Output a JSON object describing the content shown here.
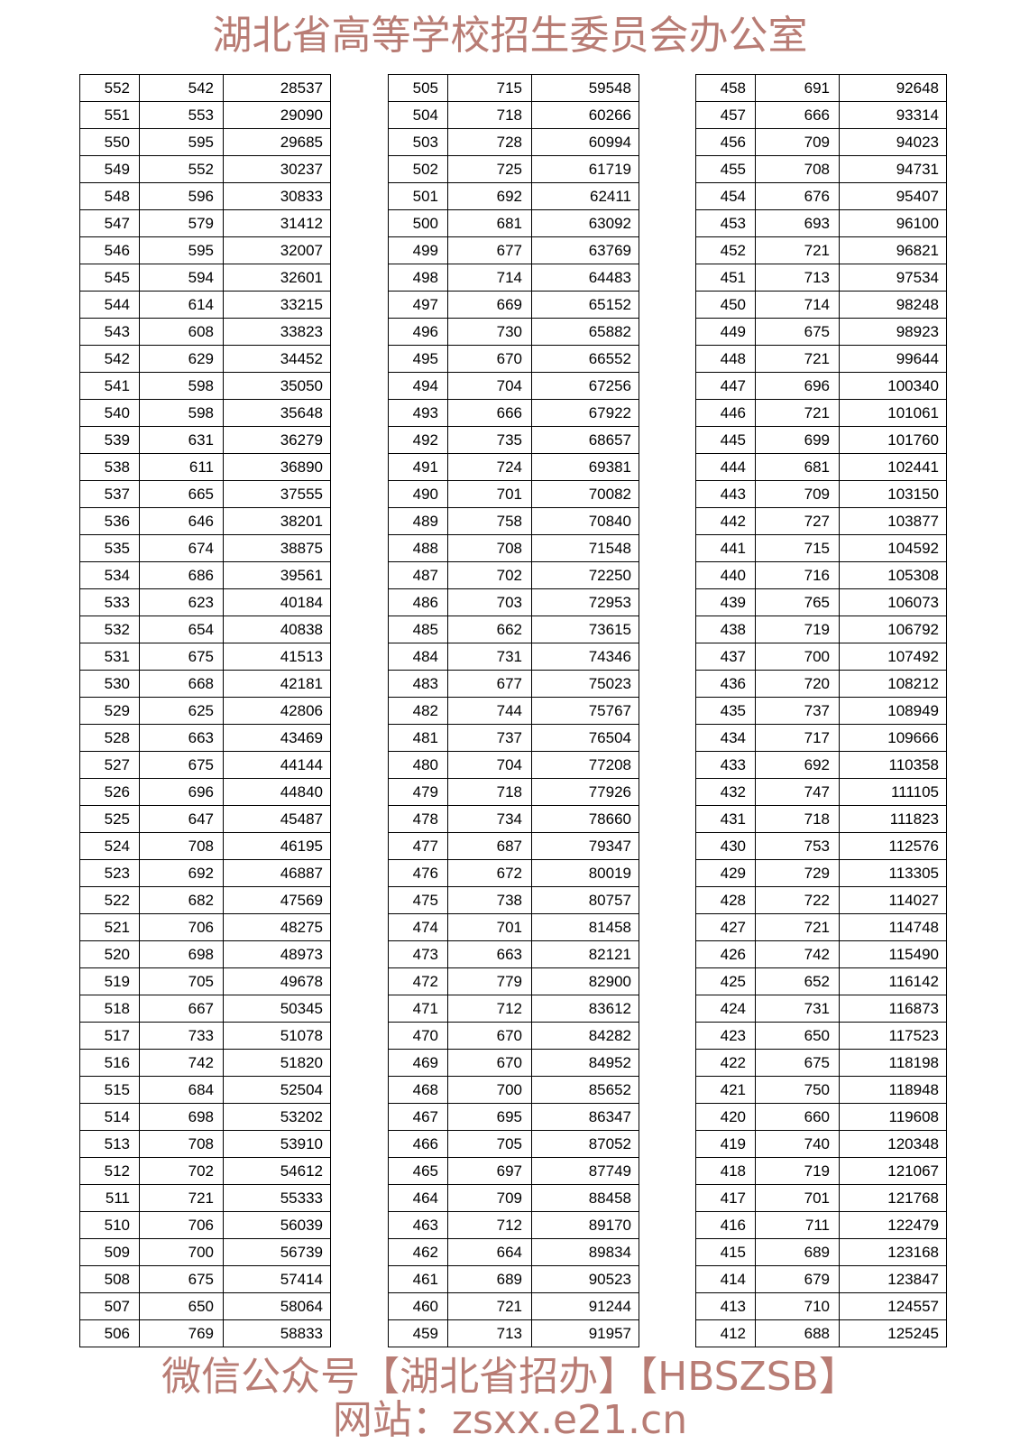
{
  "watermark": {
    "line1": "湖北省高等学校招生委员会办公室",
    "line2": "微信公众号【湖北省招办】【HBSZSB】",
    "line3": "网站：zsxx.e21.cn",
    "color": "#b87c74"
  },
  "tables": [
    {
      "rows": [
        [
          "552",
          "542",
          "28537"
        ],
        [
          "551",
          "553",
          "29090"
        ],
        [
          "550",
          "595",
          "29685"
        ],
        [
          "549",
          "552",
          "30237"
        ],
        [
          "548",
          "596",
          "30833"
        ],
        [
          "547",
          "579",
          "31412"
        ],
        [
          "546",
          "595",
          "32007"
        ],
        [
          "545",
          "594",
          "32601"
        ],
        [
          "544",
          "614",
          "33215"
        ],
        [
          "543",
          "608",
          "33823"
        ],
        [
          "542",
          "629",
          "34452"
        ],
        [
          "541",
          "598",
          "35050"
        ],
        [
          "540",
          "598",
          "35648"
        ],
        [
          "539",
          "631",
          "36279"
        ],
        [
          "538",
          "611",
          "36890"
        ],
        [
          "537",
          "665",
          "37555"
        ],
        [
          "536",
          "646",
          "38201"
        ],
        [
          "535",
          "674",
          "38875"
        ],
        [
          "534",
          "686",
          "39561"
        ],
        [
          "533",
          "623",
          "40184"
        ],
        [
          "532",
          "654",
          "40838"
        ],
        [
          "531",
          "675",
          "41513"
        ],
        [
          "530",
          "668",
          "42181"
        ],
        [
          "529",
          "625",
          "42806"
        ],
        [
          "528",
          "663",
          "43469"
        ],
        [
          "527",
          "675",
          "44144"
        ],
        [
          "526",
          "696",
          "44840"
        ],
        [
          "525",
          "647",
          "45487"
        ],
        [
          "524",
          "708",
          "46195"
        ],
        [
          "523",
          "692",
          "46887"
        ],
        [
          "522",
          "682",
          "47569"
        ],
        [
          "521",
          "706",
          "48275"
        ],
        [
          "520",
          "698",
          "48973"
        ],
        [
          "519",
          "705",
          "49678"
        ],
        [
          "518",
          "667",
          "50345"
        ],
        [
          "517",
          "733",
          "51078"
        ],
        [
          "516",
          "742",
          "51820"
        ],
        [
          "515",
          "684",
          "52504"
        ],
        [
          "514",
          "698",
          "53202"
        ],
        [
          "513",
          "708",
          "53910"
        ],
        [
          "512",
          "702",
          "54612"
        ],
        [
          "511",
          "721",
          "55333"
        ],
        [
          "510",
          "706",
          "56039"
        ],
        [
          "509",
          "700",
          "56739"
        ],
        [
          "508",
          "675",
          "57414"
        ],
        [
          "507",
          "650",
          "58064"
        ],
        [
          "506",
          "769",
          "58833"
        ]
      ]
    },
    {
      "rows": [
        [
          "505",
          "715",
          "59548"
        ],
        [
          "504",
          "718",
          "60266"
        ],
        [
          "503",
          "728",
          "60994"
        ],
        [
          "502",
          "725",
          "61719"
        ],
        [
          "501",
          "692",
          "62411"
        ],
        [
          "500",
          "681",
          "63092"
        ],
        [
          "499",
          "677",
          "63769"
        ],
        [
          "498",
          "714",
          "64483"
        ],
        [
          "497",
          "669",
          "65152"
        ],
        [
          "496",
          "730",
          "65882"
        ],
        [
          "495",
          "670",
          "66552"
        ],
        [
          "494",
          "704",
          "67256"
        ],
        [
          "493",
          "666",
          "67922"
        ],
        [
          "492",
          "735",
          "68657"
        ],
        [
          "491",
          "724",
          "69381"
        ],
        [
          "490",
          "701",
          "70082"
        ],
        [
          "489",
          "758",
          "70840"
        ],
        [
          "488",
          "708",
          "71548"
        ],
        [
          "487",
          "702",
          "72250"
        ],
        [
          "486",
          "703",
          "72953"
        ],
        [
          "485",
          "662",
          "73615"
        ],
        [
          "484",
          "731",
          "74346"
        ],
        [
          "483",
          "677",
          "75023"
        ],
        [
          "482",
          "744",
          "75767"
        ],
        [
          "481",
          "737",
          "76504"
        ],
        [
          "480",
          "704",
          "77208"
        ],
        [
          "479",
          "718",
          "77926"
        ],
        [
          "478",
          "734",
          "78660"
        ],
        [
          "477",
          "687",
          "79347"
        ],
        [
          "476",
          "672",
          "80019"
        ],
        [
          "475",
          "738",
          "80757"
        ],
        [
          "474",
          "701",
          "81458"
        ],
        [
          "473",
          "663",
          "82121"
        ],
        [
          "472",
          "779",
          "82900"
        ],
        [
          "471",
          "712",
          "83612"
        ],
        [
          "470",
          "670",
          "84282"
        ],
        [
          "469",
          "670",
          "84952"
        ],
        [
          "468",
          "700",
          "85652"
        ],
        [
          "467",
          "695",
          "86347"
        ],
        [
          "466",
          "705",
          "87052"
        ],
        [
          "465",
          "697",
          "87749"
        ],
        [
          "464",
          "709",
          "88458"
        ],
        [
          "463",
          "712",
          "89170"
        ],
        [
          "462",
          "664",
          "89834"
        ],
        [
          "461",
          "689",
          "90523"
        ],
        [
          "460",
          "721",
          "91244"
        ],
        [
          "459",
          "713",
          "91957"
        ]
      ]
    },
    {
      "rows": [
        [
          "458",
          "691",
          "92648"
        ],
        [
          "457",
          "666",
          "93314"
        ],
        [
          "456",
          "709",
          "94023"
        ],
        [
          "455",
          "708",
          "94731"
        ],
        [
          "454",
          "676",
          "95407"
        ],
        [
          "453",
          "693",
          "96100"
        ],
        [
          "452",
          "721",
          "96821"
        ],
        [
          "451",
          "713",
          "97534"
        ],
        [
          "450",
          "714",
          "98248"
        ],
        [
          "449",
          "675",
          "98923"
        ],
        [
          "448",
          "721",
          "99644"
        ],
        [
          "447",
          "696",
          "100340"
        ],
        [
          "446",
          "721",
          "101061"
        ],
        [
          "445",
          "699",
          "101760"
        ],
        [
          "444",
          "681",
          "102441"
        ],
        [
          "443",
          "709",
          "103150"
        ],
        [
          "442",
          "727",
          "103877"
        ],
        [
          "441",
          "715",
          "104592"
        ],
        [
          "440",
          "716",
          "105308"
        ],
        [
          "439",
          "765",
          "106073"
        ],
        [
          "438",
          "719",
          "106792"
        ],
        [
          "437",
          "700",
          "107492"
        ],
        [
          "436",
          "720",
          "108212"
        ],
        [
          "435",
          "737",
          "108949"
        ],
        [
          "434",
          "717",
          "109666"
        ],
        [
          "433",
          "692",
          "110358"
        ],
        [
          "432",
          "747",
          "111105"
        ],
        [
          "431",
          "718",
          "111823"
        ],
        [
          "430",
          "753",
          "112576"
        ],
        [
          "429",
          "729",
          "113305"
        ],
        [
          "428",
          "722",
          "114027"
        ],
        [
          "427",
          "721",
          "114748"
        ],
        [
          "426",
          "742",
          "115490"
        ],
        [
          "425",
          "652",
          "116142"
        ],
        [
          "424",
          "731",
          "116873"
        ],
        [
          "423",
          "650",
          "117523"
        ],
        [
          "422",
          "675",
          "118198"
        ],
        [
          "421",
          "750",
          "118948"
        ],
        [
          "420",
          "660",
          "119608"
        ],
        [
          "419",
          "740",
          "120348"
        ],
        [
          "418",
          "719",
          "121067"
        ],
        [
          "417",
          "701",
          "121768"
        ],
        [
          "416",
          "711",
          "122479"
        ],
        [
          "415",
          "689",
          "123168"
        ],
        [
          "414",
          "679",
          "123847"
        ],
        [
          "413",
          "710",
          "124557"
        ],
        [
          "412",
          "688",
          "125245"
        ]
      ]
    }
  ]
}
